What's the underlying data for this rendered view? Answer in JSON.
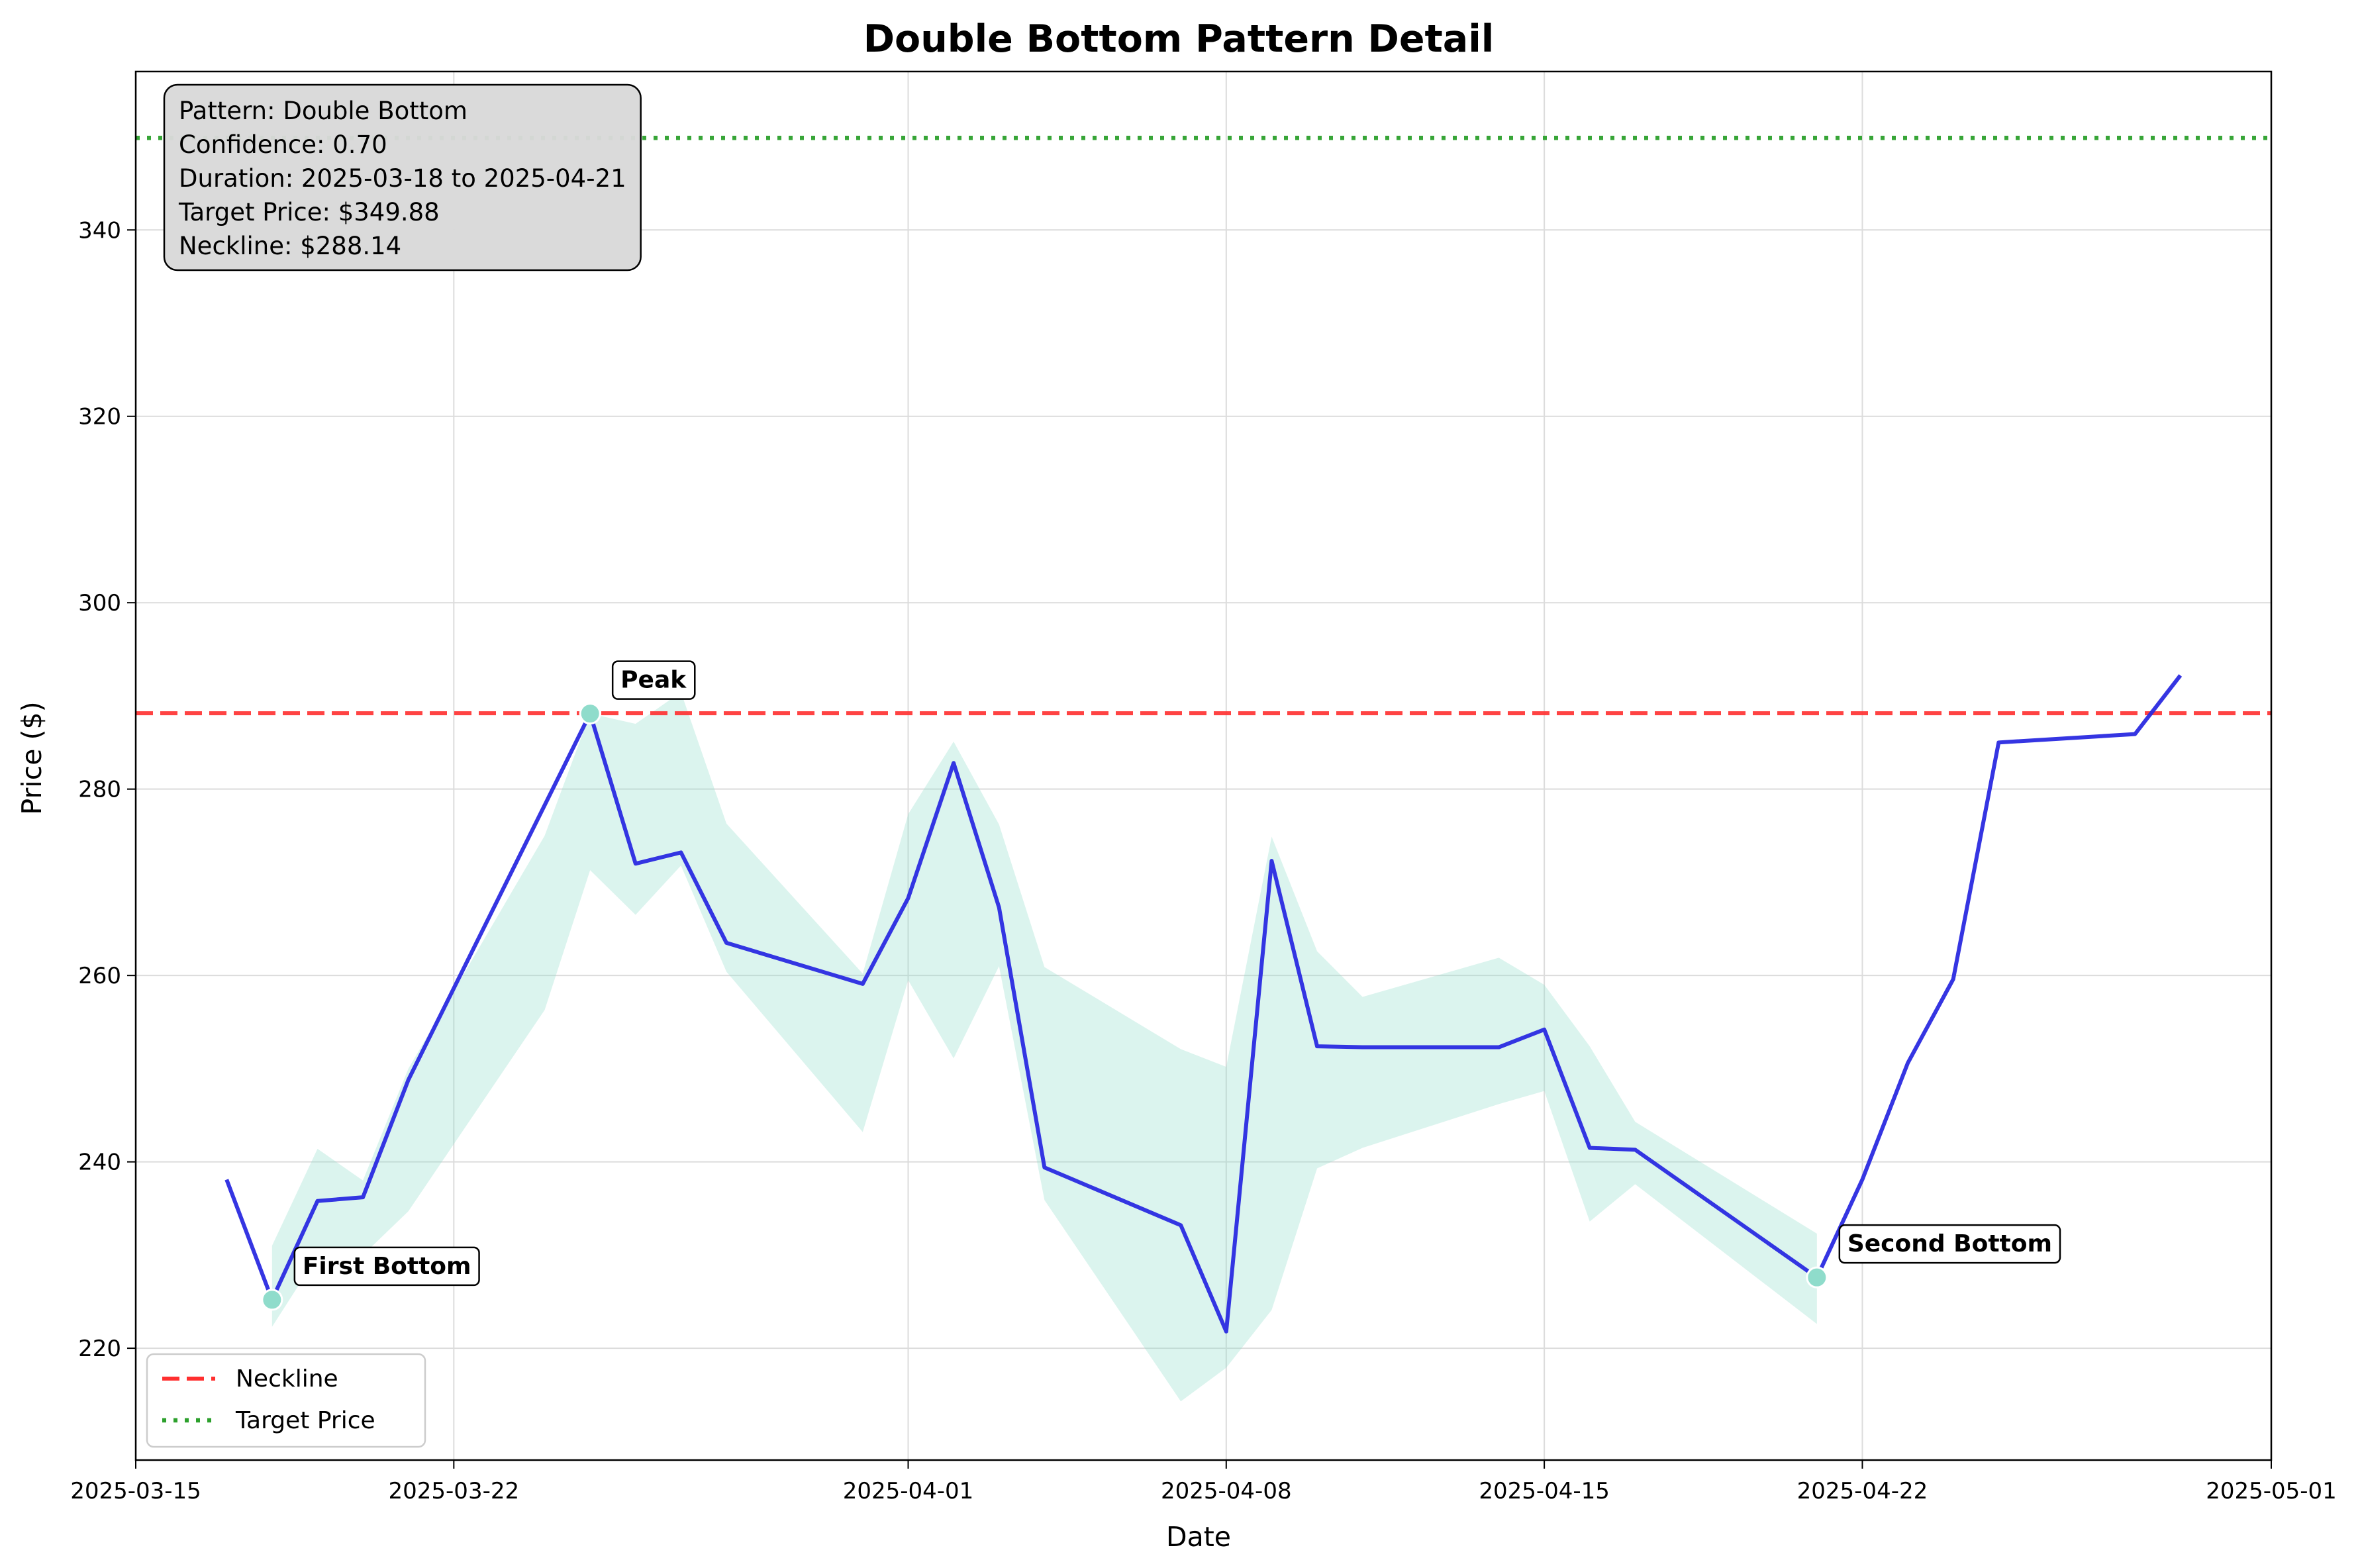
{
  "chart_data": {
    "type": "line",
    "title": "Double Bottom Pattern Detail",
    "xlabel": "Date",
    "ylabel": "Price ($)",
    "x_ticks": [
      "2025-03-15",
      "2025-03-22",
      "2025-04-01",
      "2025-04-08",
      "2025-04-15",
      "2025-04-22",
      "2025-05-01"
    ],
    "y_ticks": [
      220,
      240,
      260,
      280,
      300,
      320,
      340
    ],
    "xlim": [
      "2025-03-15",
      "2025-05-01"
    ],
    "ylim": [
      208,
      357
    ],
    "grid": true,
    "series": [
      {
        "name": "",
        "color": "#2a2ae0",
        "points": [
          [
            "2025-03-17",
            238.1
          ],
          [
            "2025-03-18",
            225.2
          ],
          [
            "2025-03-19",
            235.8
          ],
          [
            "2025-03-20",
            236.2
          ],
          [
            "2025-03-21",
            248.8
          ],
          [
            "2025-03-25",
            288.1
          ],
          [
            "2025-03-26",
            272.0
          ],
          [
            "2025-03-27",
            273.2
          ],
          [
            "2025-03-28",
            263.5
          ],
          [
            "2025-03-31",
            259.1
          ],
          [
            "2025-04-01",
            268.3
          ],
          [
            "2025-04-02",
            282.8
          ],
          [
            "2025-04-03",
            267.3
          ],
          [
            "2025-04-04",
            239.4
          ],
          [
            "2025-04-07",
            233.2
          ],
          [
            "2025-04-08",
            221.8
          ],
          [
            "2025-04-09",
            272.3
          ],
          [
            "2025-04-10",
            252.4
          ],
          [
            "2025-04-11",
            252.3
          ],
          [
            "2025-04-14",
            252.3
          ],
          [
            "2025-04-15",
            254.2
          ],
          [
            "2025-04-16",
            241.5
          ],
          [
            "2025-04-17",
            241.3
          ],
          [
            "2025-04-21",
            227.6
          ],
          [
            "2025-04-22",
            238.1
          ],
          [
            "2025-04-23",
            250.6
          ],
          [
            "2025-04-24",
            259.6
          ],
          [
            "2025-04-25",
            285.0
          ],
          [
            "2025-04-28",
            285.9
          ],
          [
            "2025-04-29",
            292.2
          ]
        ]
      }
    ],
    "band": {
      "color": "#8fdccb",
      "upper": [
        [
          "2025-03-18",
          231.0
        ],
        [
          "2025-03-19",
          241.4
        ],
        [
          "2025-03-20",
          238.0
        ],
        [
          "2025-03-21",
          250.0
        ],
        [
          "2025-03-24",
          275.0
        ],
        [
          "2025-03-25",
          288.1
        ],
        [
          "2025-03-26",
          287.0
        ],
        [
          "2025-03-27",
          290.4
        ],
        [
          "2025-03-28",
          276.3
        ],
        [
          "2025-03-31",
          260.2
        ],
        [
          "2025-04-01",
          277.3
        ],
        [
          "2025-04-02",
          285.1
        ],
        [
          "2025-04-03",
          276.2
        ],
        [
          "2025-04-04",
          260.9
        ],
        [
          "2025-04-07",
          252.1
        ],
        [
          "2025-04-08",
          250.2
        ],
        [
          "2025-04-09",
          274.9
        ],
        [
          "2025-04-10",
          262.6
        ],
        [
          "2025-04-11",
          257.7
        ],
        [
          "2025-04-14",
          261.9
        ],
        [
          "2025-04-15",
          259.0
        ],
        [
          "2025-04-16",
          252.4
        ],
        [
          "2025-04-17",
          244.3
        ],
        [
          "2025-04-21",
          232.3
        ]
      ],
      "lower": [
        [
          "2025-03-18",
          222.3
        ],
        [
          "2025-03-19",
          229.9
        ],
        [
          "2025-03-20",
          230.0
        ],
        [
          "2025-03-21",
          234.7
        ],
        [
          "2025-03-24",
          256.3
        ],
        [
          "2025-03-25",
          271.3
        ],
        [
          "2025-03-26",
          266.5
        ],
        [
          "2025-03-27",
          271.8
        ],
        [
          "2025-03-28",
          260.4
        ],
        [
          "2025-03-31",
          243.2
        ],
        [
          "2025-04-01",
          259.5
        ],
        [
          "2025-04-02",
          251.1
        ],
        [
          "2025-04-03",
          261.0
        ],
        [
          "2025-04-04",
          235.9
        ],
        [
          "2025-04-07",
          214.3
        ],
        [
          "2025-04-08",
          217.9
        ],
        [
          "2025-04-09",
          224.1
        ],
        [
          "2025-04-10",
          239.3
        ],
        [
          "2025-04-11",
          241.5
        ],
        [
          "2025-04-14",
          246.2
        ],
        [
          "2025-04-15",
          247.6
        ],
        [
          "2025-04-16",
          233.6
        ],
        [
          "2025-04-17",
          237.6
        ],
        [
          "2025-04-21",
          222.6
        ]
      ]
    },
    "neckline": {
      "label": "Neckline",
      "value": 288.14,
      "color": "#ff2f2f"
    },
    "target": {
      "label": "Target Price",
      "value": 349.88,
      "color": "#2ca02c"
    },
    "markers": [
      {
        "label": "First Bottom",
        "x": "2025-03-18",
        "y": 225.2
      },
      {
        "label": "Peak",
        "x": "2025-03-25",
        "y": 288.1
      },
      {
        "label": "Second Bottom",
        "x": "2025-04-21",
        "y": 227.6
      }
    ],
    "marker_color": "#8fdccb",
    "info_box": [
      "Pattern: Double Bottom",
      "Confidence: 0.70",
      "Duration: 2025-03-18 to 2025-04-21",
      "Target Price: $349.88",
      "Neckline: $288.14"
    ],
    "legend_placement": "lower-left"
  }
}
